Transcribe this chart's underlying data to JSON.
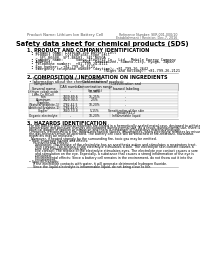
{
  "bg_color": "#ffffff",
  "header_line1": "Product Name: Lithium Ion Battery Cell",
  "header_line2": "Reference Number: SER-001-000/10",
  "header_line3": "Establishment / Revision: Dec.7, 2016",
  "title": "Safety data sheet for chemical products (SDS)",
  "section1_title": "1. PRODUCT AND COMPANY IDENTIFICATION",
  "section1_lines": [
    "  • Product name: Lithium Ion Battery Cell",
    "  • Product code: Cylindrical-type cell",
    "      SFl-B6600, SFl-B6503, SFl-B650A",
    "  • Company name:      Sanyo Electric Co., Ltd.  Mobile Energy Company",
    "  • Address:              2001  Kamikaizen, Sumoto-City, Hyogo, Japan",
    "  • Telephone number:  +81-799-24-4111",
    "  • Fax number:  +81-799-26-4121",
    "  • Emergency telephone number (daytime): +81-799-26-2642",
    "                                    (Night and holiday): +81-799-26-2121"
  ],
  "section2_title": "2. COMPOSITION / INFORMATION ON INGREDIENTS",
  "section2_lines": [
    "  • Substance or preparation: Preparation",
    "  • Information about the chemical nature of product:"
  ],
  "col_header_row1": [
    "Component",
    "CAS number",
    "Concentration /",
    "Classification and"
  ],
  "col_header_row2": [
    "",
    "",
    "Concentration range",
    "hazard labeling"
  ],
  "col_header_row3": [
    "Several name",
    "",
    "(in wt%)",
    ""
  ],
  "table_rows": [
    [
      "Lithium cobalt oxide",
      "-",
      "30-50%",
      "-"
    ],
    [
      "(LiMn-Co-R(Co))",
      "",
      "",
      ""
    ],
    [
      "Iron",
      "7439-89-6",
      "15-25%",
      "-"
    ],
    [
      "Aluminum",
      "7429-90-5",
      "2-5%",
      "-"
    ],
    [
      "Graphite",
      "",
      "",
      ""
    ],
    [
      "(Natural graphite-1)",
      "7782-42-5",
      "10-20%",
      "-"
    ],
    [
      "(Artificial graphite-1)",
      "7782-44-0",
      "",
      ""
    ],
    [
      "Copper",
      "7440-50-8",
      "5-15%",
      "Sensitization of the skin"
    ],
    [
      "",
      "",
      "",
      "group R42.2"
    ],
    [
      "Organic electrolyte",
      "-",
      "10-20%",
      "Inflammable liquid"
    ]
  ],
  "section3_title": "3. HAZARDS IDENTIFICATION",
  "section3_lines": [
    "  For the battery cell, chemical materials are stored in a hermetically-sealed metal case, designed to withstand",
    "  temperature and pressure changes encountered during normal use. As a result, during normal use, there is no",
    "  physical danger of ignition or explosion and there is no danger of hazardous materials leakage.",
    "    However, if exposed to a fire, added mechanical shocks, decomposes, when electrolyte releases by misuse,",
    "  the gas release cannot be operated. The battery cell case will be breached of fire-retardant. hazardous",
    "  materials may be released.",
    "    Moreover, if heated strongly by the surrounding fire, toxic gas may be emitted.",
    "  • Most important hazard and effects:",
    "      Human health effects:",
    "        Inhalation: The release of the electrolyte has an anesthesia action and stimulates a respiratory tract.",
    "        Skin contact: The release of the electrolyte stimulates a skin. The electrolyte skin contact causes a",
    "        sore and stimulation on the skin.",
    "        Eye contact: The release of the electrolyte stimulates eyes. The electrolyte eye contact causes a sore",
    "        and stimulation on the eye. Especially, a substance that causes a strong inflammation of the eye is",
    "        contained.",
    "        Environmental effects: Since a battery cell remains in the environment, do not throw out it into the",
    "        environment.",
    "  • Specific hazards:",
    "      If the electrolyte contacts with water, it will generate detrimental hydrogen fluoride.",
    "      Since the liquid electrolyte is inflammable liquid, do not bring close to fire."
  ]
}
